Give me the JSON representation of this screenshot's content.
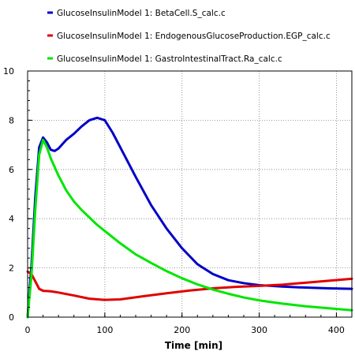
{
  "chart_data": {
    "type": "line",
    "title": "",
    "xlabel": "Time [min]",
    "ylabel": "",
    "xlim": [
      0,
      420
    ],
    "ylim": [
      0,
      10
    ],
    "x_ticks": [
      0,
      100,
      200,
      300,
      400
    ],
    "y_ticks": [
      0,
      2,
      4,
      6,
      8,
      10
    ],
    "grid": true,
    "legend_position": "top",
    "series": [
      {
        "name": "GlucoseInsulinModel 1: BetaCell.S_calc.c",
        "color": "#0000c8",
        "x": [
          0,
          5,
          10,
          15,
          20,
          25,
          30,
          35,
          40,
          50,
          60,
          70,
          80,
          90,
          100,
          110,
          120,
          140,
          160,
          180,
          200,
          220,
          240,
          260,
          280,
          300,
          330,
          360,
          390,
          420
        ],
        "y": [
          0,
          2.1,
          4.9,
          6.9,
          7.3,
          7.1,
          6.8,
          6.75,
          6.85,
          7.2,
          7.45,
          7.75,
          8.0,
          8.1,
          8.0,
          7.5,
          6.9,
          5.7,
          4.55,
          3.6,
          2.8,
          2.15,
          1.75,
          1.5,
          1.38,
          1.3,
          1.24,
          1.2,
          1.17,
          1.15
        ]
      },
      {
        "name": "GlucoseInsulinModel 1: EndogenousGlucoseProduction.EGP_calc.c",
        "color": "#e00000",
        "x": [
          0,
          5,
          10,
          15,
          20,
          30,
          40,
          60,
          80,
          100,
          120,
          150,
          180,
          210,
          240,
          270,
          300,
          330,
          360,
          390,
          420
        ],
        "y": [
          1.85,
          1.75,
          1.45,
          1.15,
          1.07,
          1.05,
          1.0,
          0.88,
          0.75,
          0.7,
          0.72,
          0.85,
          0.97,
          1.08,
          1.17,
          1.23,
          1.27,
          1.32,
          1.4,
          1.48,
          1.56
        ]
      },
      {
        "name": "GlucoseInsulinModel 1: GastroIntestinalTract.Ra_calc.c",
        "color": "#00e600",
        "x": [
          0,
          5,
          10,
          15,
          20,
          25,
          30,
          40,
          50,
          60,
          70,
          80,
          90,
          100,
          120,
          140,
          160,
          180,
          200,
          220,
          240,
          260,
          280,
          300,
          330,
          360,
          390,
          420
        ],
        "y": [
          0,
          1.7,
          4.4,
          6.6,
          7.2,
          6.9,
          6.45,
          5.75,
          5.15,
          4.7,
          4.35,
          4.05,
          3.75,
          3.5,
          3.0,
          2.55,
          2.2,
          1.87,
          1.58,
          1.33,
          1.12,
          0.95,
          0.8,
          0.68,
          0.55,
          0.44,
          0.36,
          0.28
        ]
      }
    ]
  }
}
